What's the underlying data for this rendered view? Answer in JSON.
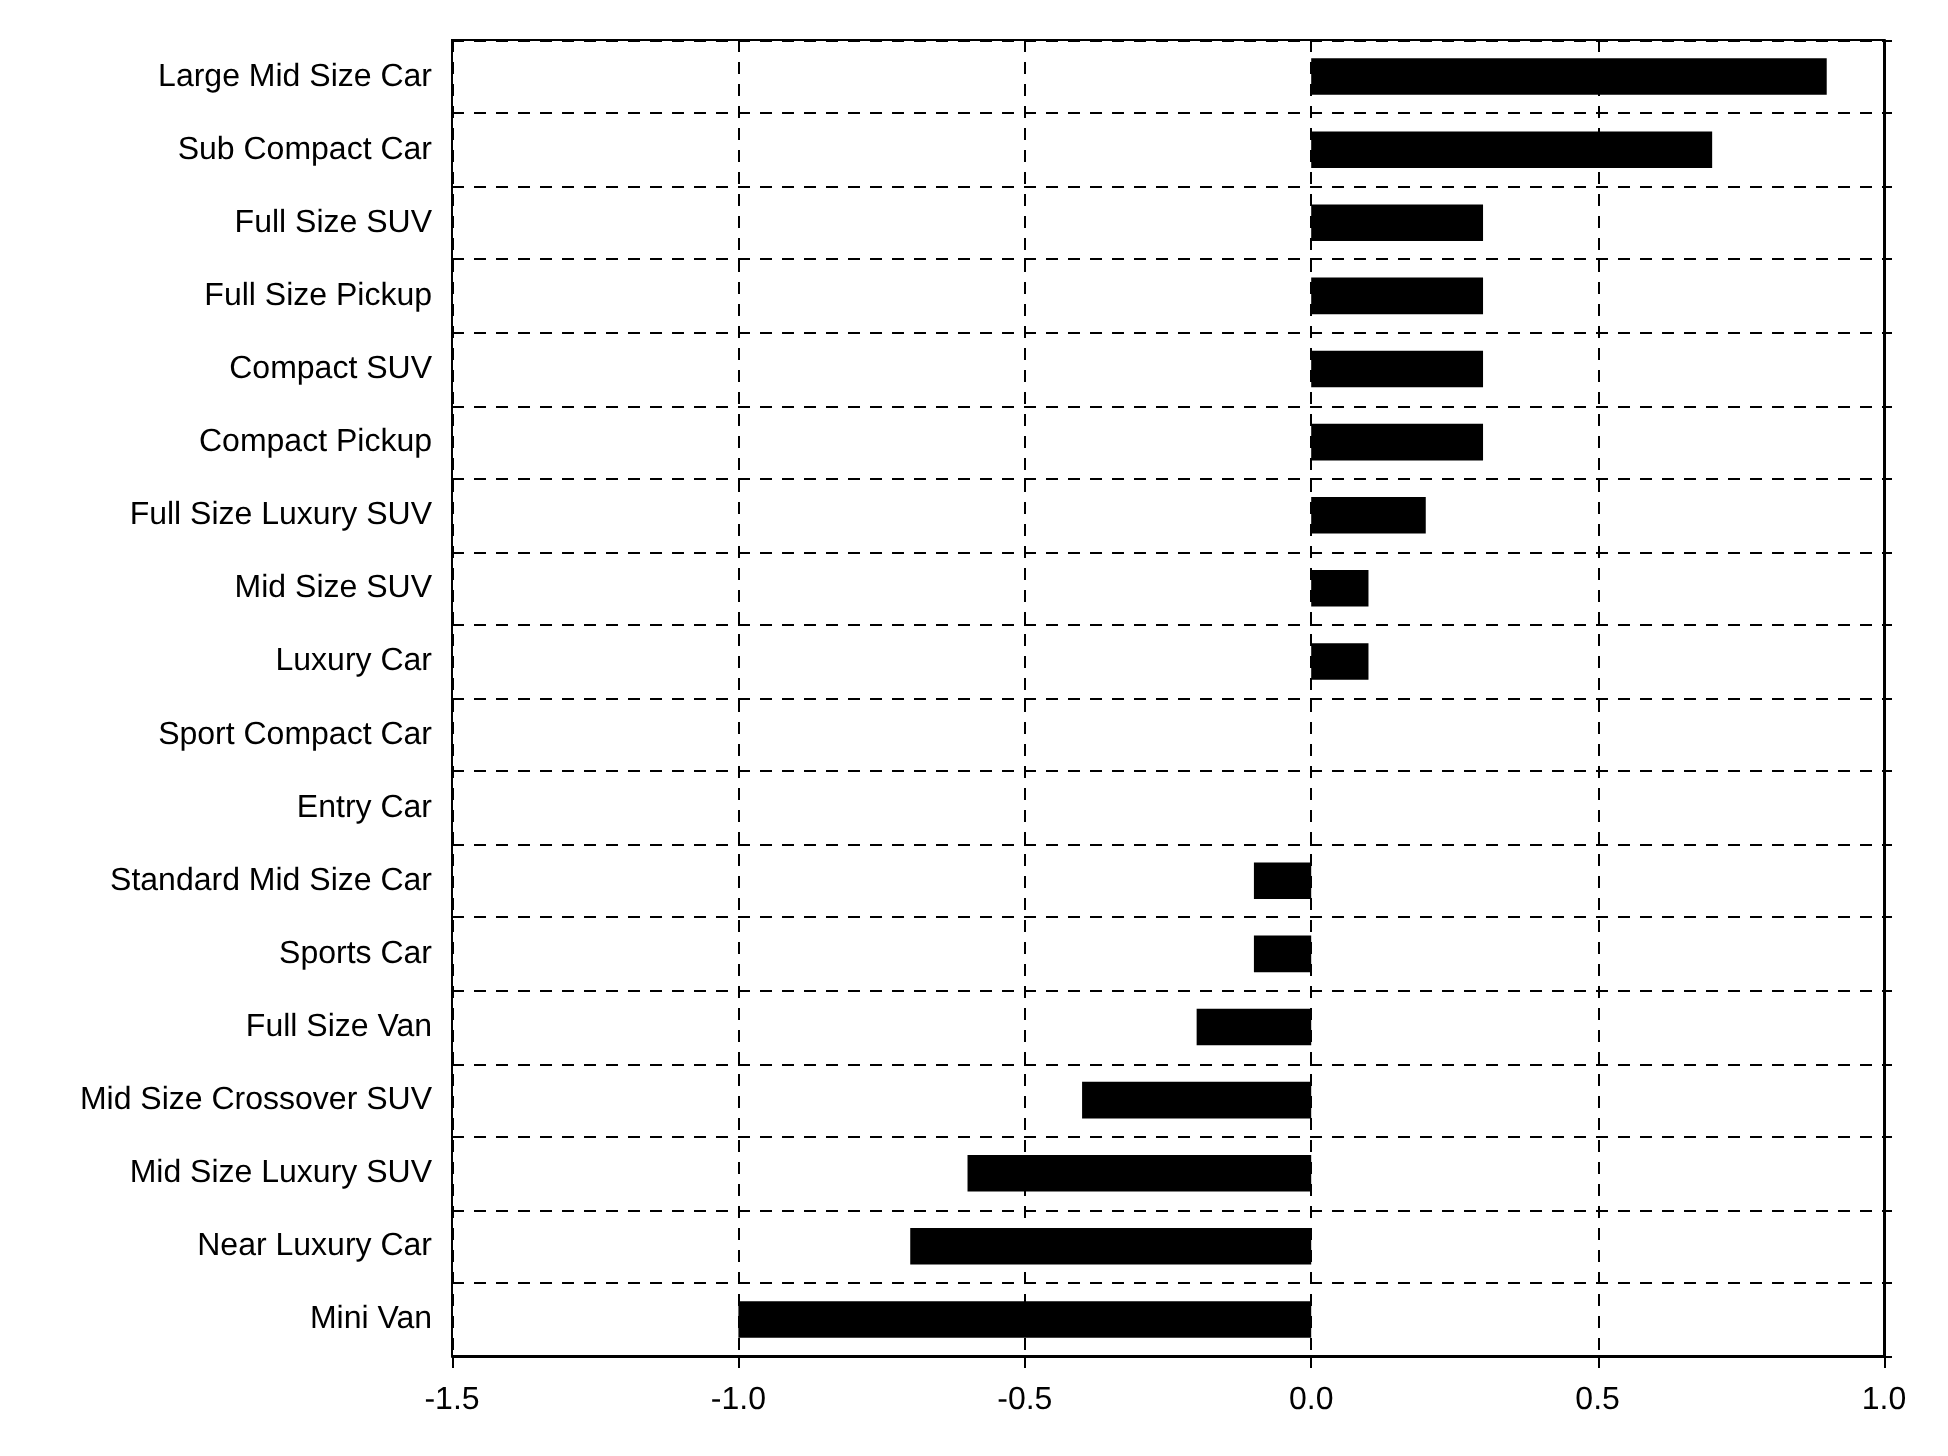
{
  "chart_data": {
    "type": "bar",
    "orientation": "horizontal",
    "categories": [
      "Large Mid Size Car",
      "Sub Compact Car",
      "Full Size SUV",
      "Full Size Pickup",
      "Compact SUV",
      "Compact Pickup",
      "Full Size Luxury SUV",
      "Mid Size SUV",
      "Luxury Car",
      "Sport Compact Car",
      "Entry Car",
      "Standard Mid Size Car",
      "Sports Car",
      "Full Size Van",
      "Mid Size Crossover SUV",
      "Mid Size Luxury SUV",
      "Near Luxury Car",
      "Mini Van"
    ],
    "values": [
      0.9,
      0.7,
      0.3,
      0.3,
      0.3,
      0.3,
      0.2,
      0.1,
      0.1,
      0,
      0,
      -0.1,
      -0.1,
      -0.2,
      -0.4,
      -0.6,
      -0.7,
      -1.0
    ],
    "color": "#000000",
    "xlim": [
      -1.5,
      1.0
    ],
    "xticks": [
      {
        "value": -1.5,
        "label": "-1.5"
      },
      {
        "value": -1.0,
        "label": "-1.0"
      },
      {
        "value": -0.5,
        "label": "-0.5"
      },
      {
        "value": 0,
        "label": "0.0"
      },
      {
        "value": 0.5,
        "label": "0.5"
      },
      {
        "value": 1.0,
        "label": "1.0"
      }
    ],
    "grid": true
  }
}
